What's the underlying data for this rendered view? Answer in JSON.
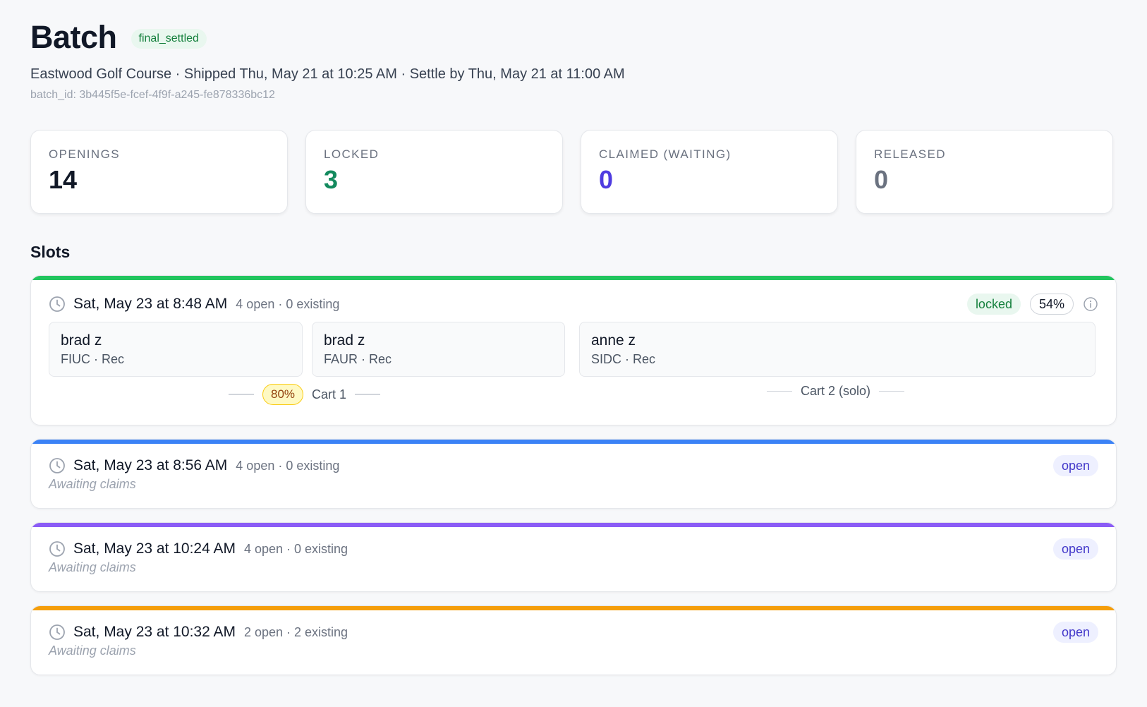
{
  "header": {
    "title": "Batch",
    "status": "final_settled",
    "subtitle": "Eastwood Golf Course · Shipped Thu, May 21 at 10:25 AM · Settle by Thu, May 21 at 11:00 AM",
    "batch_id": "batch_id: 3b445f5e-fcef-4f9f-a245-fe878336bc12"
  },
  "stats": [
    {
      "label": "OPENINGS",
      "value": "14",
      "color": "#111827"
    },
    {
      "label": "LOCKED",
      "value": "3",
      "color": "#138a5e"
    },
    {
      "label": "CLAIMED (WAITING)",
      "value": "0",
      "color": "#4f3ce0"
    },
    {
      "label": "RELEASED",
      "value": "0",
      "color": "#6b7280"
    }
  ],
  "slots_title": "Slots",
  "slots": [
    {
      "time": "Sat, May 23 at 8:48 AM",
      "meta": "4 open · 0 existing",
      "status": "locked",
      "percent": "54%",
      "accent": "#22c55e",
      "players": [
        {
          "name": "brad z",
          "detail": "FIUC · Rec"
        },
        {
          "name": "brad z",
          "detail": "FAUR · Rec"
        },
        {
          "name": "anne z",
          "detail": "SIDC · Rec"
        }
      ],
      "carts": [
        {
          "percent": "80%",
          "label": "Cart 1"
        },
        {
          "label": "Cart 2 (solo)"
        }
      ]
    },
    {
      "time": "Sat, May 23 at 8:56 AM",
      "meta": "4 open · 0 existing",
      "status": "open",
      "note": "Awaiting claims",
      "accent": "#3b82f6"
    },
    {
      "time": "Sat, May 23 at 10:24 AM",
      "meta": "4 open · 0 existing",
      "status": "open",
      "note": "Awaiting claims",
      "accent": "#8b5cf6"
    },
    {
      "time": "Sat, May 23 at 10:32 AM",
      "meta": "2 open · 2 existing",
      "status": "open",
      "note": "Awaiting claims",
      "accent": "#f59e0b"
    }
  ]
}
